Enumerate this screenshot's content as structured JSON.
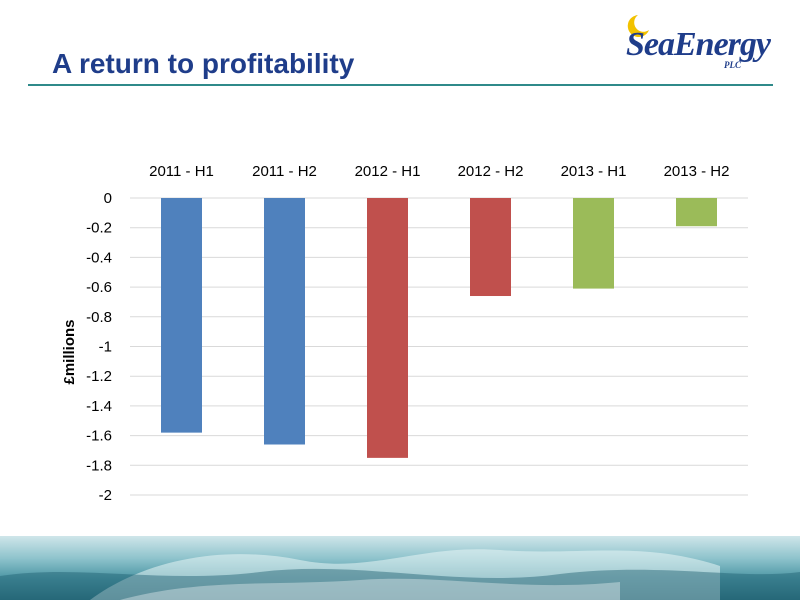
{
  "title": "A return to profitability",
  "logo": {
    "name": "SeaEnergy",
    "suffix": "PLC"
  },
  "chart_data": {
    "type": "bar",
    "categories": [
      "2011 - H1",
      "2011 - H2",
      "2012 - H1",
      "2012 - H2",
      "2013 - H1",
      "2013 - H2"
    ],
    "values": [
      -1.58,
      -1.66,
      -1.75,
      -0.66,
      -0.61,
      -0.19
    ],
    "bar_colors": [
      "#4f81bd",
      "#4f81bd",
      "#c0504d",
      "#c0504d",
      "#9bbb59",
      "#9bbb59"
    ],
    "ylabel": "£millions",
    "xlabel": "",
    "ylim": [
      -2,
      0
    ],
    "yticks": [
      "0",
      "-0.2",
      "-0.4",
      "-0.6",
      "-0.8",
      "-1",
      "-1.2",
      "-1.4",
      "-1.6",
      "-1.8",
      "-2"
    ],
    "grid": true,
    "category_axis_position": "top",
    "legend": "none"
  }
}
